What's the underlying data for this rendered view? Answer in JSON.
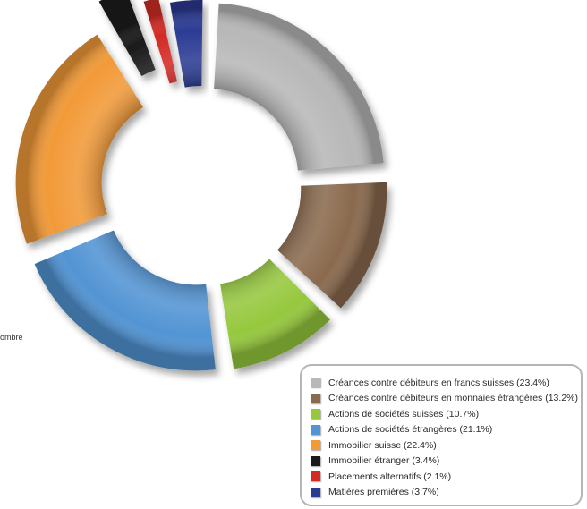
{
  "side_note": "ombre",
  "chart_data": {
    "type": "pie",
    "legend_position": "bottom-right",
    "series": [
      {
        "name": "Créances contre débiteurs en francs suisses (23.4%)",
        "value": 23.4,
        "color": "#b8b8b8"
      },
      {
        "name": "Créances contre débiteurs en monnaies étrangères (13.2%)",
        "value": 13.2,
        "color": "#8a6a4e"
      },
      {
        "name": "Actions de sociétés suisses (10.7%)",
        "value": 10.7,
        "color": "#96c83e"
      },
      {
        "name": "Actions de sociétés étrangères (21.1%)",
        "value": 21.1,
        "color": "#5294d4"
      },
      {
        "name": "Immobilier suisse (22.4%)",
        "value": 22.4,
        "color": "#f29a38"
      },
      {
        "name": "Immobilier étranger (3.4%)",
        "value": 3.4,
        "color": "#1a1a1a"
      },
      {
        "name": "Placements alternatifs (2.1%)",
        "value": 2.1,
        "color": "#d42a24"
      },
      {
        "name": "Matières premières (3.7%)",
        "value": 3.7,
        "color": "#2b3b94"
      }
    ]
  }
}
